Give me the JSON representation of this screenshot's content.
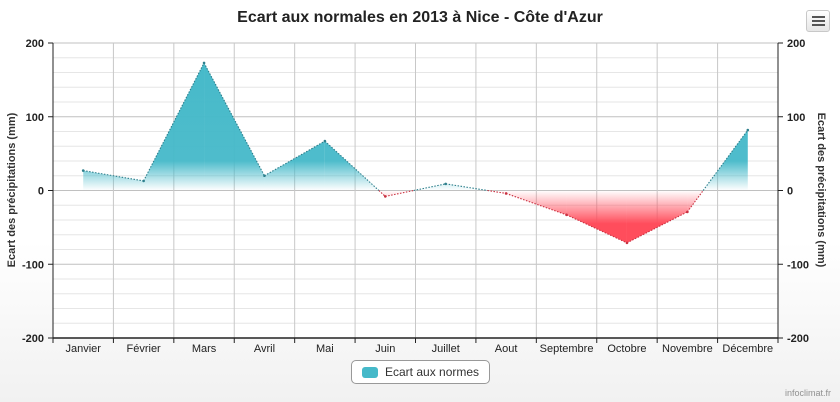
{
  "title": "Ecart aux normales en 2013 à Nice - Côte d'Azur",
  "credits": "infoclimat.fr",
  "menu_icon": "hamburger-menu-icon",
  "colors": {
    "positive": "#45b9c9",
    "negative": "#ff4d5c"
  },
  "chart_data": {
    "type": "area",
    "categories": [
      "Janvier",
      "Février",
      "Mars",
      "Avril",
      "Mai",
      "Juin",
      "Juillet",
      "Aout",
      "Septembre",
      "Octobre",
      "Novembre",
      "Décembre"
    ],
    "series": [
      {
        "name": "Ecart aux normes",
        "values": [
          27,
          13,
          173,
          20,
          67,
          -8,
          9,
          -4,
          -33,
          -71,
          -29,
          82
        ]
      }
    ],
    "ylabel_left": "Ecart des précipitations (mm)",
    "ylabel_right": "Ecart des précipitations (mm)",
    "ylim": [
      -200,
      200
    ],
    "yticks": [
      -200,
      -100,
      0,
      100,
      200
    ],
    "grid": true,
    "legend_position": "bottom-center"
  }
}
